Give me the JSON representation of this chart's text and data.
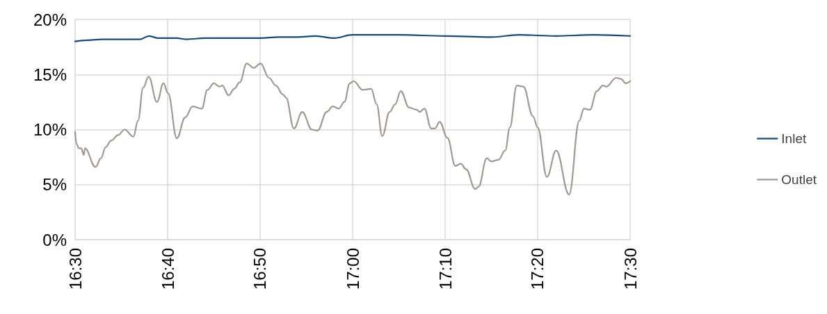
{
  "chart_data": {
    "type": "line",
    "xlim": [
      16.5,
      17.5
    ],
    "xticks": [
      {
        "value": 16.5,
        "label": "16:30"
      },
      {
        "value": 16.6667,
        "label": "16:40"
      },
      {
        "value": 16.8333,
        "label": "16:50"
      },
      {
        "value": 17,
        "label": "17:00"
      },
      {
        "value": 17.1667,
        "label": "17:10"
      },
      {
        "value": 17.3333,
        "label": "17:20"
      },
      {
        "value": 17.5,
        "label": "17:30"
      }
    ],
    "ylim": [
      0,
      20
    ],
    "yticks": [
      {
        "value": 0,
        "label": "0%"
      },
      {
        "value": 5,
        "label": "5%"
      },
      {
        "value": 10,
        "label": "10%"
      },
      {
        "value": 15,
        "label": "15%"
      },
      {
        "value": 20,
        "label": "20%"
      }
    ],
    "grid": true,
    "legend": "right",
    "marker": "none",
    "line_style": "solid",
    "series": [
      {
        "name": "Inlet",
        "color": "#124a7c",
        "x": [
          16.5,
          16.5167,
          16.55,
          16.6167,
          16.6333,
          16.65,
          16.6833,
          16.7,
          16.7333,
          16.8,
          16.8333,
          16.8667,
          16.9,
          16.9333,
          16.9667,
          17,
          17.0833,
          17.1667,
          17.25,
          17.3,
          17.3667,
          17.4333,
          17.5
        ],
        "values": [
          18.0,
          18.1,
          18.2,
          18.2,
          18.5,
          18.3,
          18.3,
          18.2,
          18.3,
          18.3,
          18.3,
          18.4,
          18.4,
          18.5,
          18.3,
          18.6,
          18.6,
          18.5,
          18.4,
          18.6,
          18.5,
          18.6,
          18.5
        ]
      },
      {
        "name": "Outlet",
        "color": "#a2988e",
        "x": [
          16.5,
          16.5025,
          16.5067,
          16.5108,
          16.5158,
          16.5175,
          16.5367,
          16.5467,
          16.555,
          16.565,
          16.5775,
          16.5892,
          16.605,
          16.6133,
          16.6225,
          16.6325,
          16.6475,
          16.6592,
          16.6675,
          16.6833,
          16.6983,
          16.7117,
          16.7283,
          16.7383,
          16.75,
          16.76,
          16.765,
          16.7767,
          16.7867,
          16.7967,
          16.8092,
          16.8217,
          16.8342,
          16.8492,
          16.8617,
          16.8742,
          16.88,
          16.8942,
          16.9092,
          16.9267,
          16.9367,
          16.9533,
          16.9642,
          16.975,
          16.985,
          16.995,
          17.0017,
          17.0183,
          17.0333,
          17.0433,
          17.0533,
          17.0667,
          17.0767,
          17.0867,
          17.1017,
          17.115,
          17.1208,
          17.1292,
          17.1417,
          17.1483,
          17.1567,
          17.1708,
          17.185,
          17.195,
          17.2042,
          17.2208,
          17.2267,
          17.2417,
          17.25,
          17.2625,
          17.275,
          17.2833,
          17.2958,
          17.3075,
          17.325,
          17.3333,
          17.35,
          17.3667,
          17.39,
          17.4083,
          17.4167,
          17.4275,
          17.44,
          17.4508,
          17.4567,
          17.475,
          17.4833,
          17.4925,
          17.5
        ],
        "values": [
          9.8,
          8.7,
          8.3,
          8.3,
          7.7,
          8.3,
          6.6,
          7.4,
          8.4,
          9.0,
          9.5,
          10.0,
          9.35,
          10.8,
          13.8,
          14.8,
          12.5,
          14.2,
          13.3,
          9.2,
          11.1,
          12.1,
          11.9,
          13.6,
          14.2,
          13.9,
          14.0,
          13.1,
          13.7,
          14.3,
          16.0,
          15.6,
          16.0,
          14.7,
          14.0,
          13.2,
          12.9,
          10.1,
          11.6,
          10.0,
          9.9,
          11.6,
          12.1,
          11.9,
          12.5,
          14.2,
          14.4,
          13.6,
          13.7,
          12.3,
          9.4,
          11.6,
          12.3,
          13.5,
          12.0,
          11.8,
          11.6,
          11.9,
          10.1,
          10.1,
          10.7,
          9.25,
          6.7,
          6.9,
          6.4,
          4.6,
          4.8,
          7.4,
          7.1,
          7.25,
          8.1,
          10.2,
          14.0,
          13.9,
          11.2,
          10.2,
          5.7,
          8.1,
          4.1,
          10.8,
          11.9,
          11.8,
          13.5,
          14.0,
          13.9,
          14.7,
          14.6,
          14.2,
          14.4
        ]
      }
    ]
  }
}
